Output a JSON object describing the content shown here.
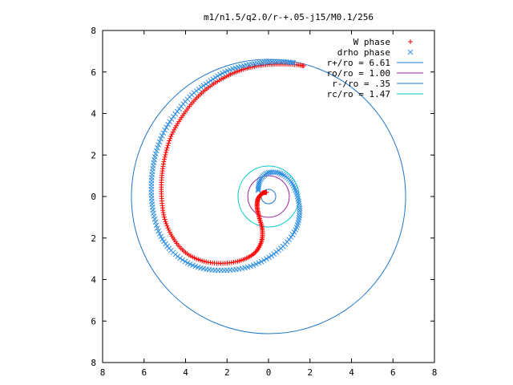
{
  "chart_data": {
    "type": "scatter",
    "title": "m1/n1.5/q2.0/r-+.05-j15/M0.1/256",
    "xlabel": "",
    "ylabel": "",
    "xlim": [
      -8,
      8
    ],
    "ylim": [
      -8,
      8
    ],
    "x_tick_values": [
      -8,
      -6,
      -4,
      -2,
      0,
      2,
      4,
      6,
      8
    ],
    "x_tick_labels": [
      "8",
      "6",
      "4",
      "2",
      "0",
      "2",
      "4",
      "6",
      "8"
    ],
    "y_tick_values": [
      8,
      6,
      4,
      2,
      0,
      -2,
      -4,
      -6,
      -8
    ],
    "y_tick_labels": [
      "8",
      "6",
      "4",
      "2",
      "0",
      "2",
      "4",
      "6",
      "8"
    ],
    "grid": false,
    "legend_position": "top-right",
    "series": [
      {
        "name": "W phase",
        "marker": "plus",
        "color": "#ff0000",
        "points": [
          [
            1.7,
            6.3
          ],
          [
            1.0,
            6.38
          ],
          [
            0.3,
            6.38
          ],
          [
            -0.5,
            6.3
          ],
          [
            -1.3,
            6.1
          ],
          [
            -2.1,
            5.75
          ],
          [
            -2.9,
            5.25
          ],
          [
            -3.6,
            4.6
          ],
          [
            -4.2,
            3.8
          ],
          [
            -4.7,
            2.9
          ],
          [
            -5.0,
            1.9
          ],
          [
            -5.15,
            0.9
          ],
          [
            -5.15,
            -0.1
          ],
          [
            -5.0,
            -1.1
          ],
          [
            -4.6,
            -2.0
          ],
          [
            -4.0,
            -2.7
          ],
          [
            -3.2,
            -3.1
          ],
          [
            -2.3,
            -3.22
          ],
          [
            -1.4,
            -3.1
          ],
          [
            -0.7,
            -2.75
          ],
          [
            -0.35,
            -2.2
          ],
          [
            -0.3,
            -1.6
          ],
          [
            -0.45,
            -1.0
          ],
          [
            -0.55,
            -0.5
          ],
          [
            -0.5,
            -0.1
          ],
          [
            -0.3,
            0.15
          ],
          [
            -0.1,
            0.2
          ]
        ]
      },
      {
        "name": "drho phase",
        "marker": "cross",
        "color": "#2f8fe0",
        "points": [
          [
            1.2,
            6.45
          ],
          [
            0.5,
            6.5
          ],
          [
            -0.3,
            6.45
          ],
          [
            -1.2,
            6.3
          ],
          [
            -2.1,
            6.0
          ],
          [
            -2.9,
            5.5
          ],
          [
            -3.7,
            4.9
          ],
          [
            -4.4,
            4.1
          ],
          [
            -5.0,
            3.2
          ],
          [
            -5.4,
            2.2
          ],
          [
            -5.6,
            1.2
          ],
          [
            -5.65,
            0.2
          ],
          [
            -5.55,
            -0.8
          ],
          [
            -5.25,
            -1.8
          ],
          [
            -4.7,
            -2.6
          ],
          [
            -3.9,
            -3.2
          ],
          [
            -3.0,
            -3.5
          ],
          [
            -2.0,
            -3.55
          ],
          [
            -1.0,
            -3.4
          ],
          [
            -0.1,
            -3.0
          ],
          [
            0.7,
            -2.4
          ],
          [
            1.3,
            -1.6
          ],
          [
            1.5,
            -0.8
          ],
          [
            1.4,
            0.0
          ],
          [
            1.1,
            0.7
          ],
          [
            0.6,
            1.1
          ],
          [
            0.0,
            1.15
          ],
          [
            -0.4,
            0.8
          ],
          [
            -0.5,
            0.3
          ]
        ]
      }
    ],
    "circles": [
      {
        "label": "r+/ro = 6.61",
        "radius": 6.61,
        "color": "#1f77c8"
      },
      {
        "label": "ro/ro = 1.00",
        "radius": 1.0,
        "color": "#a020a0"
      },
      {
        "label": "r-/ro = .35",
        "radius": 0.35,
        "color": "#1f77c8"
      },
      {
        "label": "rc/ro = 1.47",
        "radius": 1.47,
        "color": "#00c8c8"
      }
    ]
  }
}
